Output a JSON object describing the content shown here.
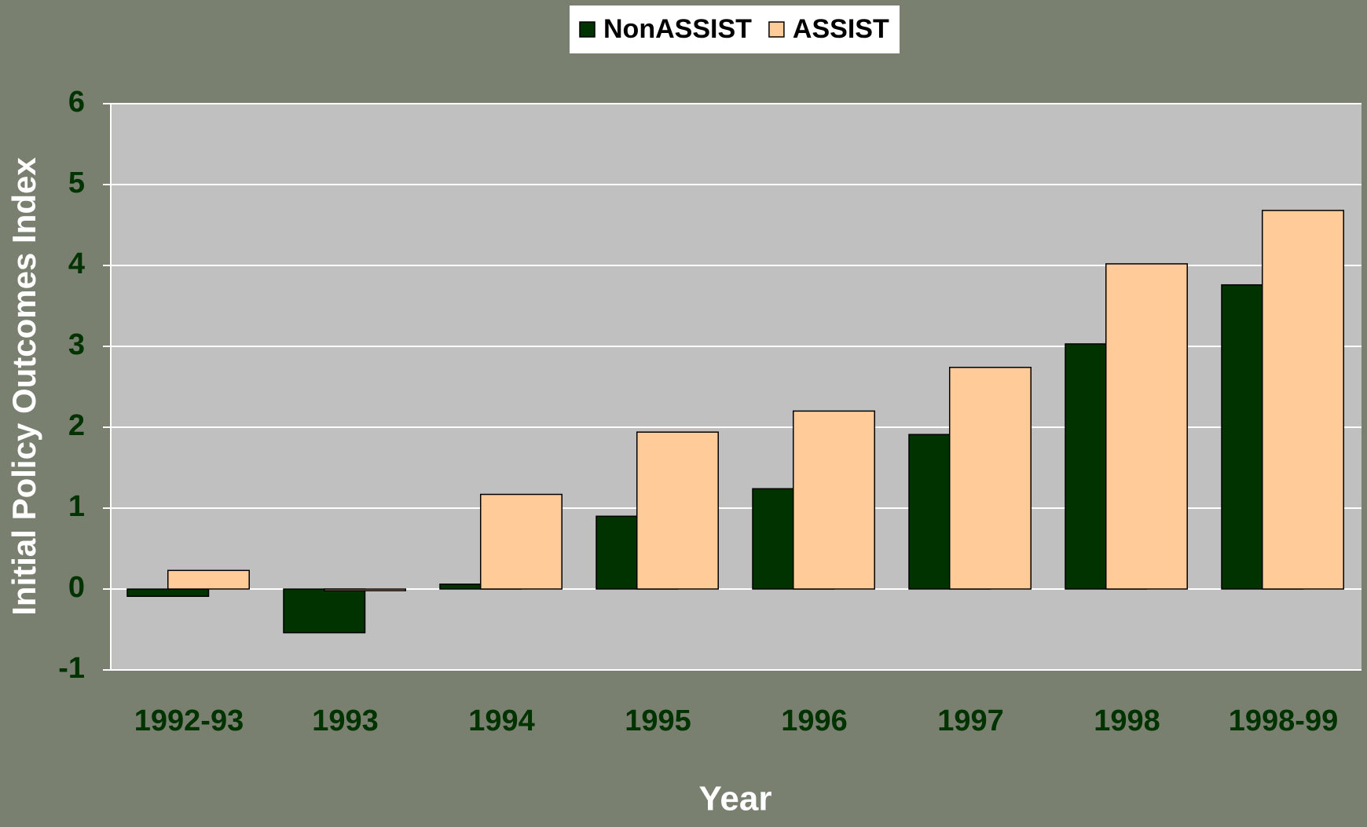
{
  "chart_data": {
    "type": "bar",
    "x_label": "Year",
    "y_label": "Initial Policy Outcomes Index",
    "categories": [
      "1992-93",
      "1993",
      "1994",
      "1995",
      "1996",
      "1997",
      "1998",
      "1998-99"
    ],
    "series": [
      {
        "name": "NonASSIST",
        "color": "#003300",
        "values": [
          -0.09,
          -0.54,
          0.06,
          0.9,
          1.24,
          1.91,
          3.03,
          3.76
        ]
      },
      {
        "name": "ASSIST",
        "color": "#ffcc99",
        "values": [
          0.23,
          -0.02,
          1.17,
          1.94,
          2.2,
          2.74,
          4.02,
          4.68
        ]
      }
    ],
    "ylim": [
      -1,
      6
    ],
    "yticks": [
      -1,
      0,
      1,
      2,
      3,
      4,
      5,
      6
    ],
    "grid": true,
    "legend": "top"
  }
}
